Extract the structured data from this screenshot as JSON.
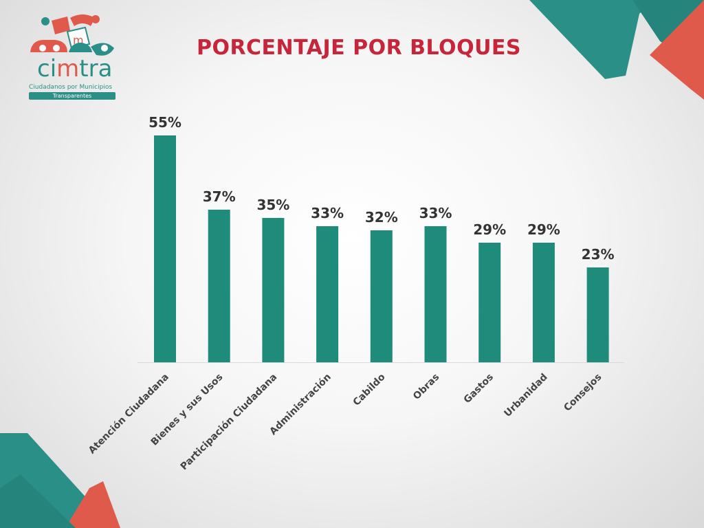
{
  "logo": {
    "brand_prefix": "ci",
    "brand_accent": "m",
    "brand_suffix": "tra",
    "tagline": "Ciudadanos por Municipios",
    "tagline2": "Transparentes",
    "icon_letter": "m"
  },
  "colors": {
    "bar": "#1e8b7b",
    "title": "#c7253a",
    "teal": "#2a8f86",
    "coral": "#e05a4b"
  },
  "chart_data": {
    "type": "bar",
    "title": "PORCENTAJE POR BLOQUES",
    "categories": [
      "Atención Ciudadana",
      "Bienes y sus Usos",
      "Participación Ciudadana",
      "Administración",
      "Cabildo",
      "Obras",
      "Gastos",
      "Urbanidad",
      "Consejos"
    ],
    "values": [
      55,
      37,
      35,
      33,
      32,
      33,
      29,
      29,
      23
    ],
    "value_labels": [
      "55%",
      "37%",
      "35%",
      "33%",
      "32%",
      "33%",
      "29%",
      "29%",
      "23%"
    ],
    "ylim": [
      0,
      60
    ],
    "grid": false,
    "xlabel": "",
    "ylabel": ""
  }
}
